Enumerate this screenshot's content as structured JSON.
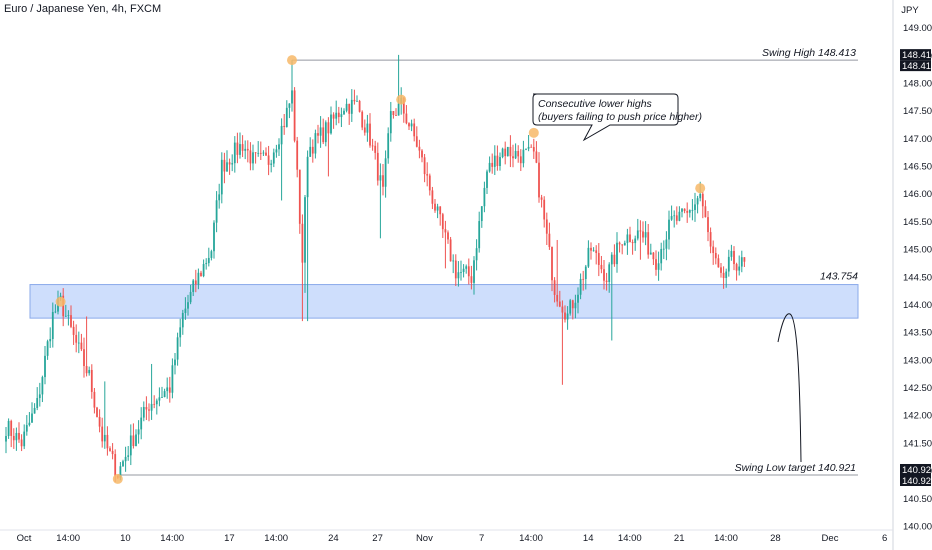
{
  "chart_title": "Euro / Japanese Yen, 4h, FXCM",
  "currency_label": "JPY",
  "colors": {
    "up": "#26a69a",
    "down": "#ef5350",
    "zone_fill": "#c5d8fb",
    "zone_stroke": "#8aa9ea",
    "marker": "#f7b968",
    "level_line": "#9598a1",
    "grid_text": "#131722",
    "tag_bg": "#131722"
  },
  "chart_data": {
    "type": "candlestick",
    "ylim": [
      140.0,
      149.3
    ],
    "y_ticks": [
      "140.000",
      "140.500",
      "141.000",
      "141.500",
      "142.000",
      "142.500",
      "143.000",
      "143.500",
      "144.000",
      "144.500",
      "145.000",
      "145.500",
      "146.000",
      "146.500",
      "147.000",
      "147.500",
      "148.000",
      "148.500",
      "149.000"
    ],
    "x_tick_labels": [
      "Oct",
      "14:00",
      "10",
      "14:00",
      "17",
      "14:00",
      "24",
      "27",
      "Nov",
      "7",
      "14:00",
      "14",
      "14:00",
      "21",
      "14:00",
      "28",
      "Dec",
      "6"
    ],
    "x_tick_index": [
      0,
      17,
      39,
      57,
      79,
      97,
      119,
      136,
      154,
      176,
      195,
      217,
      233,
      252,
      270,
      289,
      310,
      331
    ],
    "candle_count": 285,
    "anchors": [
      [
        0,
        141.8
      ],
      [
        6,
        141.5
      ],
      [
        12,
        142.2
      ],
      [
        18,
        143.8
      ],
      [
        21,
        144.05
      ],
      [
        26,
        143.4
      ],
      [
        32,
        142.7
      ],
      [
        37,
        141.6
      ],
      [
        43,
        140.95
      ],
      [
        49,
        141.6
      ],
      [
        55,
        142.2
      ],
      [
        63,
        142.5
      ],
      [
        68,
        143.8
      ],
      [
        73,
        144.4
      ],
      [
        79,
        145.0
      ],
      [
        83,
        146.5
      ],
      [
        91,
        146.9
      ],
      [
        95,
        146.6
      ],
      [
        101,
        146.6
      ],
      [
        107,
        147.3
      ],
      [
        110,
        147.8
      ],
      [
        114,
        144.8
      ],
      [
        116,
        146.8
      ],
      [
        124,
        147.2
      ],
      [
        130,
        147.6
      ],
      [
        135,
        147.6
      ],
      [
        140,
        147.0
      ],
      [
        145,
        146.0
      ],
      [
        148,
        147.4
      ],
      [
        152,
        147.6
      ],
      [
        158,
        146.9
      ],
      [
        166,
        145.6
      ],
      [
        173,
        144.6
      ],
      [
        179,
        144.5
      ],
      [
        185,
        146.4
      ],
      [
        191,
        146.8
      ],
      [
        197,
        146.7
      ],
      [
        203,
        146.7
      ],
      [
        207,
        145.5
      ],
      [
        211,
        144.3
      ],
      [
        216,
        143.8
      ],
      [
        221,
        144.4
      ],
      [
        225,
        145.0
      ],
      [
        231,
        144.5
      ],
      [
        237,
        145.2
      ],
      [
        244,
        145.3
      ],
      [
        250,
        144.8
      ],
      [
        256,
        145.5
      ],
      [
        262,
        145.6
      ],
      [
        267,
        146.0
      ],
      [
        271,
        145.0
      ],
      [
        275,
        144.4
      ],
      [
        279,
        144.8
      ],
      [
        284,
        144.7
      ]
    ],
    "zone": {
      "low": 143.754,
      "high": 144.36
    },
    "levels": [
      {
        "name": "swing-high",
        "value": 148.413,
        "label": "Swing High 148.413"
      },
      {
        "name": "swing-low",
        "value": 140.921,
        "label": "Swing Low target 140.921"
      }
    ],
    "zone_label": "143.754",
    "price_tags": [
      "148.413",
      "148.413",
      "140.921",
      "140.921"
    ],
    "callout": {
      "line1": "Consecutive lower highs",
      "line2": "(buyers failing to push price higher)"
    },
    "markers": [
      {
        "index": 21,
        "value": 144.05
      },
      {
        "index": 43,
        "value": 140.85
      },
      {
        "index": 110,
        "value": 148.413
      },
      {
        "index": 152,
        "value": 147.7
      },
      {
        "index": 203,
        "value": 147.1
      },
      {
        "index": 267,
        "value": 146.1
      }
    ]
  }
}
